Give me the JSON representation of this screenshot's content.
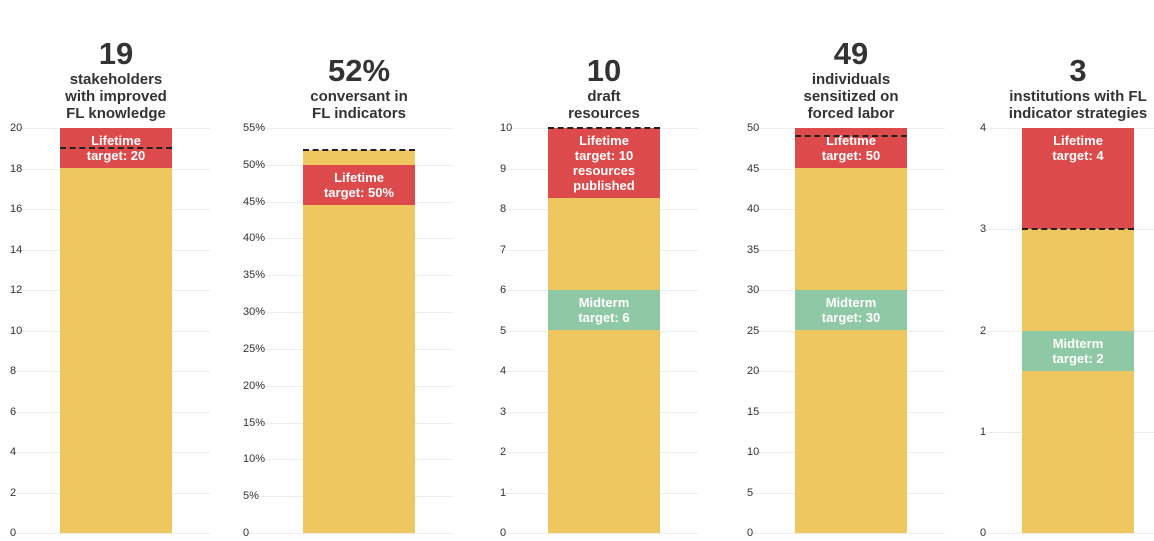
{
  "chart_data": [
    {
      "type": "bar",
      "title": "19",
      "subtitle": "stakeholders with improved FL knowledge",
      "values": [
        19
      ],
      "color": "#efc761",
      "ylim": [
        0,
        20
      ],
      "yticks": [
        0,
        2,
        4,
        6,
        8,
        10,
        12,
        14,
        16,
        18,
        20
      ],
      "grid": true,
      "targets": [
        {
          "label": "Lifetime target: 20",
          "value": 20,
          "color": "#dc4a4c"
        }
      ]
    },
    {
      "type": "bar",
      "title": "52%",
      "subtitle": "conversant in FL indicators",
      "values": [
        52
      ],
      "value_labels": [
        "52%"
      ],
      "color": "#efc761",
      "ylim": [
        0,
        55
      ],
      "yticks": [
        {
          "value": 0,
          "label": "0"
        },
        {
          "value": 5,
          "label": "5%"
        },
        {
          "value": 10,
          "label": "10%"
        },
        {
          "value": 15,
          "label": "15%"
        },
        {
          "value": 20,
          "label": "20%"
        },
        {
          "value": 25,
          "label": "25%"
        },
        {
          "value": 30,
          "label": "30%"
        },
        {
          "value": 35,
          "label": "35%"
        },
        {
          "value": 40,
          "label": "40%"
        },
        {
          "value": 45,
          "label": "45%"
        },
        {
          "value": 50,
          "label": "50%"
        },
        {
          "value": 55,
          "label": "55%"
        }
      ],
      "grid": true,
      "targets": [
        {
          "label": "Lifetime target: 50%",
          "value": 50,
          "color": "#dc4a4c"
        }
      ]
    },
    {
      "type": "bar",
      "title": "10",
      "subtitle": "draft resources",
      "values": [
        10
      ],
      "color": "#efc761",
      "ylim": [
        0,
        10
      ],
      "yticks": [
        0,
        1,
        2,
        3,
        4,
        5,
        6,
        7,
        8,
        9,
        10
      ],
      "grid": true,
      "targets": [
        {
          "label": "Lifetime target: 10 resources published",
          "value": 10,
          "color": "#dc4a4c"
        },
        {
          "label": "Midterm target: 6",
          "value": 6,
          "color": "#8ec8a4"
        }
      ]
    },
    {
      "type": "bar",
      "title": "49",
      "subtitle": "individuals sensitized on forced labor",
      "values": [
        49
      ],
      "color": "#efc761",
      "ylim": [
        0,
        50
      ],
      "yticks": [
        0,
        5,
        10,
        15,
        20,
        25,
        30,
        35,
        40,
        45,
        50
      ],
      "grid": true,
      "targets": [
        {
          "label": "Lifetime target: 50",
          "value": 50,
          "color": "#dc4a4c"
        },
        {
          "label": "Midterm target: 30",
          "value": 30,
          "color": "#8ec8a4"
        }
      ]
    },
    {
      "type": "bar",
      "title": "3",
      "subtitle": "institutions with FL indicator strategies",
      "values": [
        3
      ],
      "color": "#efc761",
      "ylim": [
        0,
        4
      ],
      "yticks": [
        0,
        1,
        2,
        3,
        4
      ],
      "grid": true,
      "targets": [
        {
          "label": "Lifetime target: 4",
          "value": 4,
          "color": "#dc4a4c"
        },
        {
          "label": "Midterm target: 2",
          "value": 2,
          "color": "#8ec8a4"
        }
      ]
    }
  ]
}
